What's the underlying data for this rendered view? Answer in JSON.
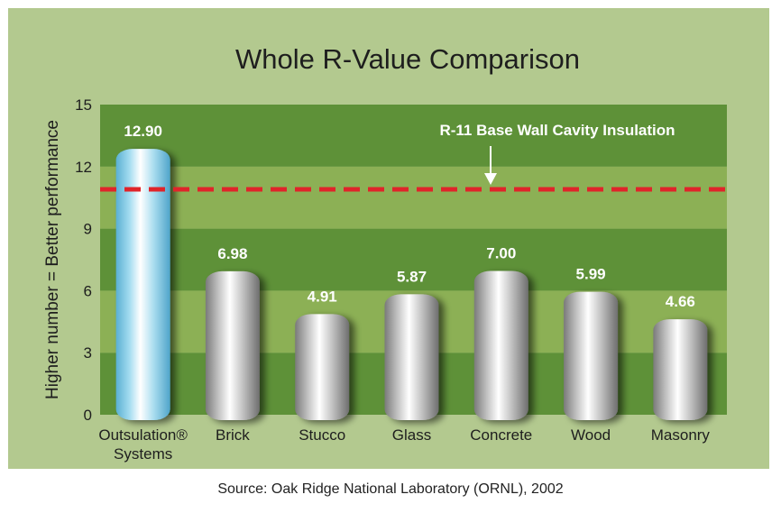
{
  "chart_data": {
    "type": "bar",
    "title": "Whole R-Value Comparison",
    "ylabel": "Higher number = Better performance",
    "xlabel": "",
    "ylim": [
      0,
      15
    ],
    "yticks": [
      "0",
      "3",
      "6",
      "9",
      "12",
      "15"
    ],
    "categories": [
      [
        "Outsulation®",
        "Systems"
      ],
      [
        "Brick"
      ],
      [
        "Stucco"
      ],
      [
        "Glass"
      ],
      [
        "Concrete"
      ],
      [
        "Wood"
      ],
      [
        "Masonry"
      ]
    ],
    "values": [
      12.9,
      6.98,
      4.91,
      5.87,
      7.0,
      5.99,
      4.66
    ],
    "value_labels": [
      "12.90",
      "6.98",
      "4.91",
      "5.87",
      "7.00",
      "5.99",
      "4.66"
    ],
    "highlight_index": 0,
    "reference_line": {
      "value": 10.9,
      "label": "R-11 Base Wall Cavity Insulation",
      "color": "#e0242a"
    },
    "colors": {
      "frame": "#b3c98f",
      "band_dark": "#5e9138",
      "band_light": "#8cb055",
      "highlight": "#8fd0ea",
      "bar": "#b8b8b8"
    }
  },
  "source": "Source: Oak Ridge National Laboratory (ORNL), 2002"
}
